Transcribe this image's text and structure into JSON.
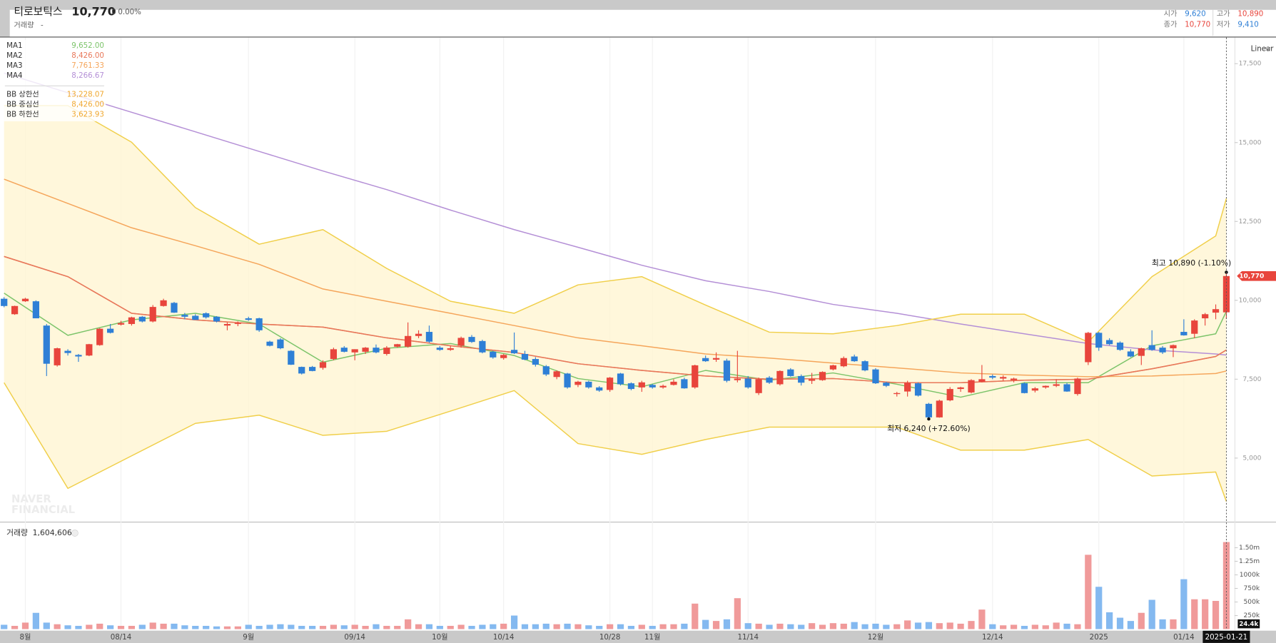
{
  "header": {
    "name": "티로보틱스",
    "price": "10,770",
    "change": "0",
    "change_pct": "0.00%",
    "volume_label": "거래량",
    "volume_value": "-",
    "quotes": [
      {
        "label": "시가",
        "value": "9,620",
        "color": "#2e7fd6"
      },
      {
        "label": "고가",
        "value": "10,890",
        "color": "#e8453c"
      },
      {
        "label": "종가",
        "value": "10,770",
        "color": "#e8453c"
      },
      {
        "label": "저가",
        "value": "9,410",
        "color": "#2e7fd6"
      }
    ]
  },
  "scale_button": "Linear",
  "watermark": [
    "NAVER",
    "FINANCIAL"
  ],
  "chart_data": {
    "type": "candlestick",
    "ylim": [
      3010,
      18330
    ],
    "yticks": [
      {
        "value": 5000,
        "label": "5,000"
      },
      {
        "value": 7500,
        "label": "7,500"
      },
      {
        "value": 10000,
        "label": "10,000"
      },
      {
        "value": 12500,
        "label": "12,500"
      },
      {
        "value": 15000,
        "label": "15,000"
      },
      {
        "value": 17500,
        "label": "17,500"
      }
    ],
    "grid": true,
    "up_color": "#e8453c",
    "down_color": "#2e7fd6",
    "categories": [
      null,
      null,
      "8월",
      null,
      null,
      null,
      null,
      null,
      null,
      null,
      null,
      "08/14",
      null,
      null,
      null,
      null,
      null,
      null,
      null,
      null,
      null,
      null,
      null,
      "9월",
      null,
      null,
      null,
      null,
      null,
      null,
      null,
      null,
      null,
      "09/14",
      null,
      null,
      null,
      null,
      null,
      null,
      null,
      "10월",
      null,
      null,
      null,
      null,
      null,
      "10/14",
      null,
      null,
      null,
      null,
      null,
      null,
      null,
      null,
      null,
      "10/28",
      null,
      null,
      null,
      "11월",
      null,
      null,
      null,
      null,
      null,
      null,
      null,
      null,
      "11/14",
      null,
      null,
      null,
      null,
      null,
      null,
      null,
      null,
      null,
      null,
      null,
      "12월",
      null,
      null,
      null,
      null,
      null,
      null,
      null,
      null,
      null,
      null,
      "12/14",
      null,
      null,
      null,
      null,
      null,
      null,
      null,
      null,
      null,
      "2025",
      null,
      null,
      null,
      null,
      null,
      null,
      null,
      "01/14",
      null,
      null,
      null,
      null,
      null
    ],
    "crosshair_date": "2025-01-21",
    "candles": [
      [
        10050,
        10100,
        9780,
        9820
      ],
      [
        9560,
        9830,
        9540,
        9820
      ],
      [
        9970,
        10080,
        9950,
        10050
      ],
      [
        9970,
        10000,
        9430,
        9430
      ],
      [
        9200,
        9250,
        7600,
        7990
      ],
      [
        7940,
        8500,
        7900,
        8480
      ],
      [
        8400,
        8450,
        8250,
        8330
      ],
      [
        8270,
        8300,
        8050,
        8220
      ],
      [
        8250,
        8620,
        8230,
        8610
      ],
      [
        8580,
        9120,
        8560,
        9100
      ],
      [
        9100,
        9250,
        8950,
        8970
      ],
      [
        9230,
        9350,
        9200,
        9280
      ],
      [
        9250,
        9480,
        9200,
        9460
      ],
      [
        9480,
        9500,
        9300,
        9330
      ],
      [
        9330,
        9850,
        9300,
        9790
      ],
      [
        9820,
        10050,
        9800,
        10000
      ],
      [
        9920,
        9950,
        9600,
        9610
      ],
      [
        9540,
        9600,
        9400,
        9480
      ],
      [
        9510,
        9560,
        9400,
        9380
      ],
      [
        9590,
        9620,
        9420,
        9460
      ],
      [
        9480,
        9500,
        9300,
        9330
      ],
      [
        9200,
        9300,
        9050,
        9250
      ],
      [
        9250,
        9330,
        9180,
        9280
      ],
      [
        9430,
        9480,
        9350,
        9380
      ],
      [
        9430,
        9450,
        9000,
        9050
      ],
      [
        8690,
        8720,
        8540,
        8560
      ],
      [
        8760,
        8800,
        8450,
        8480
      ],
      [
        8400,
        8420,
        7950,
        7960
      ],
      [
        7890,
        7900,
        7650,
        7680
      ],
      [
        7890,
        7920,
        7750,
        7760
      ],
      [
        7860,
        8100,
        7800,
        8040
      ],
      [
        8140,
        8500,
        8100,
        8450
      ],
      [
        8500,
        8550,
        8350,
        8370
      ],
      [
        8350,
        8450,
        8100,
        8450
      ],
      [
        8370,
        8520,
        8300,
        8500
      ],
      [
        8500,
        8600,
        8320,
        8350
      ],
      [
        8300,
        8550,
        8250,
        8500
      ],
      [
        8530,
        8620,
        8500,
        8610
      ],
      [
        8530,
        9300,
        8500,
        8870
      ],
      [
        8870,
        9050,
        8800,
        8940
      ],
      [
        9000,
        9200,
        8650,
        8690
      ],
      [
        8500,
        8550,
        8400,
        8430
      ],
      [
        8430,
        8550,
        8400,
        8480
      ],
      [
        8560,
        8850,
        8500,
        8810
      ],
      [
        8840,
        8900,
        8650,
        8680
      ],
      [
        8710,
        8750,
        8320,
        8350
      ],
      [
        8370,
        8400,
        8150,
        8190
      ],
      [
        8170,
        8300,
        8120,
        8270
      ],
      [
        8430,
        8980,
        8300,
        8320
      ],
      [
        8300,
        8400,
        8100,
        8120
      ],
      [
        8140,
        8200,
        7900,
        7960
      ],
      [
        7910,
        7950,
        7600,
        7650
      ],
      [
        7570,
        7780,
        7500,
        7750
      ],
      [
        7680,
        7700,
        7200,
        7240
      ],
      [
        7320,
        7450,
        7250,
        7420
      ],
      [
        7420,
        7450,
        7200,
        7240
      ],
      [
        7240,
        7280,
        7100,
        7140
      ],
      [
        7160,
        7570,
        7100,
        7550
      ],
      [
        7680,
        7700,
        7300,
        7340
      ],
      [
        7370,
        7400,
        7150,
        7190
      ],
      [
        7240,
        7450,
        7100,
        7400
      ],
      [
        7320,
        7350,
        7200,
        7240
      ],
      [
        7240,
        7330,
        7200,
        7290
      ],
      [
        7320,
        7500,
        7300,
        7420
      ],
      [
        7500,
        7550,
        7200,
        7210
      ],
      [
        7240,
        7960,
        7200,
        7940
      ],
      [
        8170,
        8250,
        8050,
        8070
      ],
      [
        8120,
        8350,
        8050,
        8170
      ],
      [
        8090,
        8150,
        7400,
        7450
      ],
      [
        7470,
        8400,
        7400,
        7520
      ],
      [
        7520,
        7600,
        7200,
        7240
      ],
      [
        7060,
        7550,
        7000,
        7500
      ],
      [
        7550,
        7600,
        7350,
        7390
      ],
      [
        7340,
        7780,
        7300,
        7760
      ],
      [
        7810,
        7850,
        7580,
        7600
      ],
      [
        7600,
        7650,
        7300,
        7390
      ],
      [
        7450,
        7700,
        7350,
        7500
      ],
      [
        7470,
        7750,
        7450,
        7730
      ],
      [
        7810,
        7960,
        7780,
        7940
      ],
      [
        7910,
        8220,
        7880,
        8170
      ],
      [
        8220,
        8280,
        8050,
        8070
      ],
      [
        8070,
        8100,
        7750,
        7780
      ],
      [
        7810,
        7850,
        7350,
        7370
      ],
      [
        7390,
        7420,
        7250,
        7290
      ],
      [
        7030,
        7100,
        6950,
        7060
      ],
      [
        7110,
        7450,
        6950,
        7390
      ],
      [
        7370,
        7400,
        6950,
        6980
      ],
      [
        6720,
        6750,
        6240,
        6290
      ],
      [
        6290,
        6850,
        6280,
        6820
      ],
      [
        6830,
        7250,
        6800,
        7190
      ],
      [
        7190,
        7260,
        7100,
        7240
      ],
      [
        7080,
        7500,
        7050,
        7470
      ],
      [
        7420,
        7950,
        7400,
        7500
      ],
      [
        7600,
        7650,
        7500,
        7550
      ],
      [
        7520,
        7620,
        7450,
        7570
      ],
      [
        7470,
        7550,
        7400,
        7520
      ],
      [
        7370,
        7400,
        7050,
        7060
      ],
      [
        7140,
        7250,
        7080,
        7210
      ],
      [
        7240,
        7300,
        7200,
        7290
      ],
      [
        7290,
        7500,
        7250,
        7340
      ],
      [
        7340,
        7380,
        7100,
        7110
      ],
      [
        7030,
        7550,
        6980,
        7520
      ],
      [
        8040,
        9000,
        7950,
        8970
      ],
      [
        8970,
        9000,
        8400,
        8500
      ],
      [
        8740,
        8800,
        8580,
        8610
      ],
      [
        8660,
        8700,
        8400,
        8430
      ],
      [
        8380,
        8450,
        8200,
        8220
      ],
      [
        8240,
        8500,
        7950,
        8480
      ],
      [
        8580,
        9050,
        8400,
        8430
      ],
      [
        8500,
        8550,
        8300,
        8350
      ],
      [
        8480,
        8600,
        8200,
        8580
      ],
      [
        9000,
        9400,
        8880,
        8890
      ],
      [
        8940,
        9400,
        8800,
        9360
      ],
      [
        9430,
        9600,
        9200,
        9560
      ],
      [
        9610,
        9870,
        9400,
        9720
      ],
      [
        9620,
        10890,
        9410,
        10770
      ]
    ],
    "annotations": {
      "max": "최고 10,890 (-1.10%)",
      "min": "최저 6,240 (+72.60%)"
    },
    "overlays": {
      "x": [
        0,
        6,
        12,
        18,
        24,
        30,
        36,
        42,
        48,
        54,
        60,
        66,
        72,
        78,
        84,
        90,
        96,
        102,
        108,
        114,
        115
      ],
      "series": [
        {
          "name": "MA1",
          "value_label": "9,652.00",
          "color": "#7cc46a",
          "values": [
            10230,
            8890,
            9380,
            9590,
            9250,
            8040,
            8480,
            8630,
            8250,
            7520,
            7260,
            7780,
            7470,
            7700,
            7340,
            6930,
            7390,
            7390,
            8560,
            8940,
            9652
          ]
        },
        {
          "name": "MA2",
          "value_label": "8,426.00",
          "color": "#e8785a",
          "values": [
            11390,
            10750,
            9590,
            9380,
            9250,
            9150,
            8810,
            8560,
            8350,
            7990,
            7780,
            7600,
            7500,
            7520,
            7390,
            7390,
            7470,
            7500,
            7830,
            8220,
            8426
          ]
        },
        {
          "name": "MA3",
          "value_label": "7,761.33",
          "color": "#f5a55a",
          "values": [
            13840,
            13070,
            12300,
            11730,
            11140,
            10360,
            9970,
            9590,
            9200,
            8810,
            8560,
            8300,
            8170,
            8010,
            7860,
            7700,
            7630,
            7580,
            7600,
            7680,
            7761
          ]
        },
        {
          "name": "MA4",
          "value_label": "8,266.67",
          "color": "#b48fd6",
          "values": [
            17200,
            16580,
            15960,
            15340,
            14720,
            14100,
            13510,
            12860,
            12240,
            11680,
            11110,
            10620,
            10280,
            9870,
            9590,
            9250,
            8940,
            8630,
            8430,
            8300,
            8267
          ]
        },
        {
          "name": "BB 상한선",
          "value_label": "13,228.07",
          "color": "#f0cf4a",
          "values": [
            16170,
            16170,
            15010,
            12940,
            11780,
            12240,
            11010,
            9970,
            9590,
            10490,
            10750,
            9850,
            8990,
            8940,
            9200,
            9560,
            9560,
            8680,
            10750,
            12040,
            13228
          ]
        },
        {
          "name": "BB 중심선",
          "value_label": "8,426.00",
          "color": "#e8785a",
          "values": [
            11390,
            10750,
            9590,
            9380,
            9250,
            9150,
            8810,
            8560,
            8350,
            7990,
            7780,
            7600,
            7500,
            7520,
            7390,
            7390,
            7470,
            7500,
            7830,
            8220,
            8426
          ]
        },
        {
          "name": "BB 하한선",
          "value_label": "3,623.93",
          "color": "#f0cf4a",
          "values": [
            7390,
            4040,
            5070,
            6100,
            6360,
            5720,
            5850,
            6490,
            7140,
            5460,
            5120,
            5590,
            5980,
            5980,
            5980,
            5250,
            5250,
            5590,
            4430,
            4560,
            3624
          ]
        }
      ]
    },
    "volume": {
      "title": "거래량",
      "value_label": "1,604,606",
      "crosshair_label": "24.4k",
      "up_color": "#f09a9a",
      "down_color": "#84b9f0",
      "ylim": [
        0,
        1920000
      ],
      "yticks": [
        {
          "value": 250000,
          "label": "250k"
        },
        {
          "value": 500000,
          "label": "500k"
        },
        {
          "value": 750000,
          "label": "750k"
        },
        {
          "value": 1000000,
          "label": "1000k"
        },
        {
          "value": 1250000,
          "label": "1.25m"
        },
        {
          "value": 1500000,
          "label": "1.50m"
        }
      ],
      "values": [
        80000,
        60000,
        120000,
        300000,
        120000,
        90000,
        70000,
        60000,
        80000,
        100000,
        70000,
        60000,
        60000,
        80000,
        120000,
        100000,
        100000,
        70000,
        60000,
        60000,
        50000,
        50000,
        50000,
        80000,
        60000,
        80000,
        90000,
        80000,
        60000,
        60000,
        60000,
        80000,
        70000,
        80000,
        60000,
        90000,
        60000,
        60000,
        180000,
        90000,
        90000,
        60000,
        60000,
        80000,
        60000,
        80000,
        90000,
        100000,
        250000,
        90000,
        90000,
        100000,
        90000,
        100000,
        90000,
        70000,
        60000,
        90000,
        90000,
        60000,
        80000,
        60000,
        90000,
        90000,
        100000,
        470000,
        170000,
        150000,
        180000,
        570000,
        110000,
        100000,
        80000,
        100000,
        90000,
        80000,
        110000,
        80000,
        110000,
        100000,
        130000,
        90000,
        100000,
        80000,
        90000,
        160000,
        120000,
        130000,
        110000,
        120000,
        100000,
        150000,
        360000,
        90000,
        70000,
        80000,
        60000,
        80000,
        70000,
        120000,
        100000,
        90000,
        1370000,
        780000,
        310000,
        210000,
        150000,
        300000,
        540000,
        180000,
        180000,
        920000,
        550000,
        550000,
        520000,
        1604606
      ]
    }
  }
}
